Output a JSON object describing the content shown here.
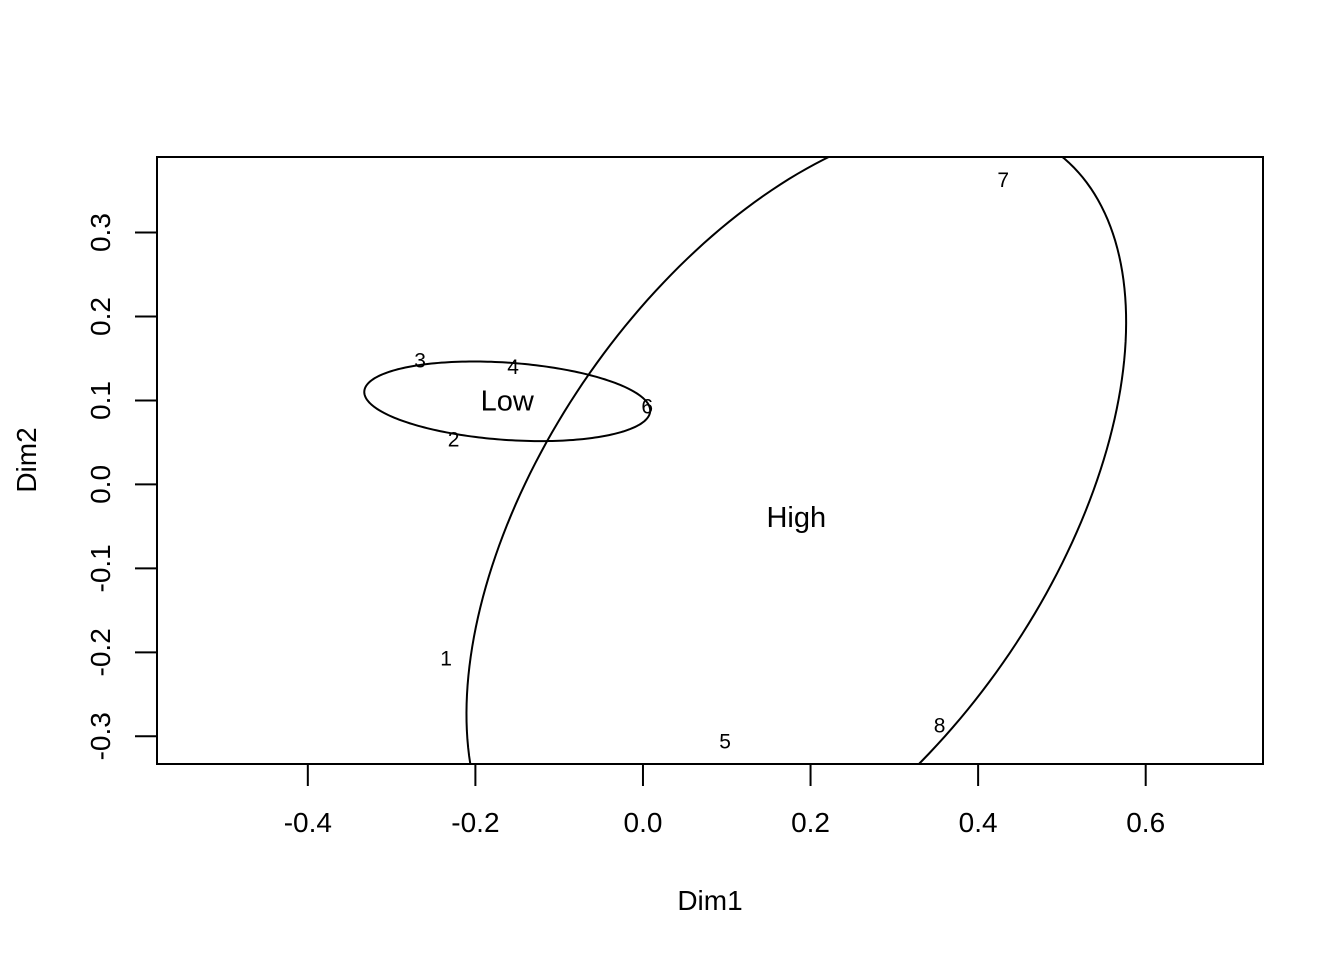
{
  "chart_data": {
    "type": "scatter",
    "title": "",
    "xlabel": "Dim1",
    "ylabel": "Dim2",
    "xlim": [
      -0.58,
      0.74
    ],
    "ylim": [
      -0.333,
      0.39
    ],
    "xticks": [
      -0.4,
      -0.2,
      0.0,
      0.2,
      0.4,
      0.6
    ],
    "xtick_labels": [
      "-0.4",
      "-0.2",
      "0.0",
      "0.2",
      "0.4",
      "0.6"
    ],
    "yticks": [
      -0.3,
      -0.2,
      -0.1,
      0.0,
      0.1,
      0.2,
      0.3
    ],
    "ytick_labels": [
      "-0.3",
      "-0.2",
      "-0.1",
      "0.0",
      "0.1",
      "0.2",
      "0.3"
    ],
    "grid": false,
    "points": [
      {
        "label": "1",
        "x": -0.235,
        "y": -0.208
      },
      {
        "label": "2",
        "x": -0.226,
        "y": 0.053
      },
      {
        "label": "3",
        "x": -0.266,
        "y": 0.147
      },
      {
        "label": "4",
        "x": -0.155,
        "y": 0.139
      },
      {
        "label": "5",
        "x": 0.098,
        "y": -0.307
      },
      {
        "label": "6",
        "x": 0.005,
        "y": 0.092
      },
      {
        "label": "7",
        "x": 0.43,
        "y": 0.362
      },
      {
        "label": "8",
        "x": 0.354,
        "y": -0.288
      }
    ],
    "groups": [
      {
        "label": "Low",
        "center": [
          -0.162,
          0.099
        ],
        "ellipse": {
          "cx": -0.162,
          "cy": 0.099,
          "a": 0.171,
          "b": 0.046,
          "angle_deg": -4
        }
      },
      {
        "label": "High",
        "center": [
          0.183,
          -0.04
        ],
        "ellipse": {
          "cx": 0.183,
          "cy": -0.04,
          "a": 0.535,
          "b": 0.301,
          "angle_deg": 55
        }
      }
    ]
  }
}
